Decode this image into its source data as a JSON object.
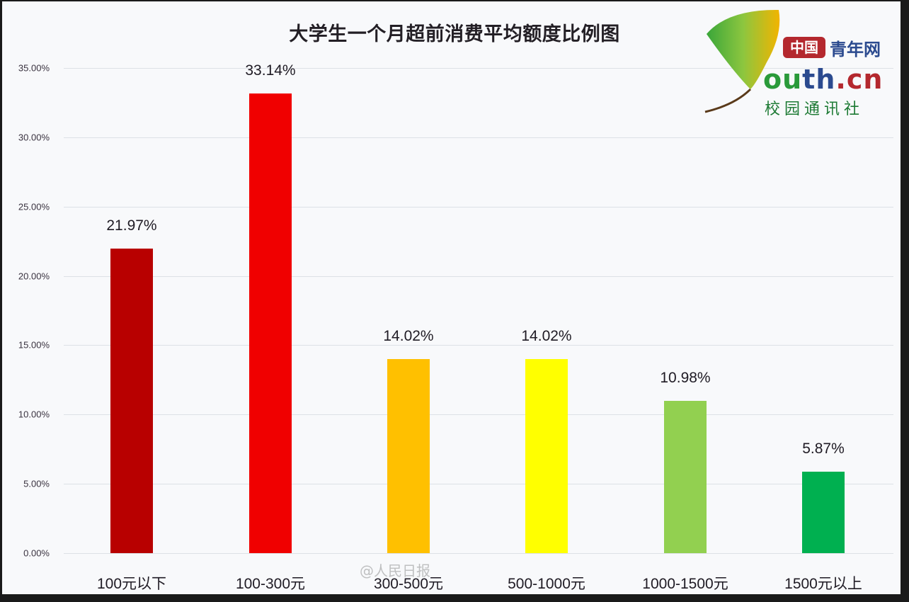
{
  "chart_data": {
    "type": "bar",
    "title": "大学生一个月超前消费平均额度比例图",
    "xlabel": "",
    "ylabel": "",
    "categories": [
      "100元以下",
      "100-300元",
      "300-500元",
      "500-1000元",
      "1000-1500元",
      "1500元以上"
    ],
    "values": [
      21.97,
      33.14,
      14.02,
      14.02,
      10.98,
      5.87
    ],
    "value_labels": [
      "21.97%",
      "33.14%",
      "14.02%",
      "14.02%",
      "10.98%",
      "5.87%"
    ],
    "bar_colors": [
      "#b80000",
      "#f00000",
      "#ffc000",
      "#ffff00",
      "#92d050",
      "#00b050"
    ],
    "ylim": [
      0,
      35
    ],
    "yticks": [
      "0.00%",
      "5.00%",
      "10.00%",
      "15.00%",
      "20.00%",
      "25.00%",
      "30.00%",
      "35.00%"
    ],
    "grid": true,
    "legend": "none"
  },
  "logo": {
    "badge": "中国",
    "name": "青年网",
    "domain_prefix": "ou",
    "domain_mid": "th",
    "domain_suffix": ".cn",
    "subtitle": "校园通讯社"
  },
  "watermark": "@人民日报"
}
